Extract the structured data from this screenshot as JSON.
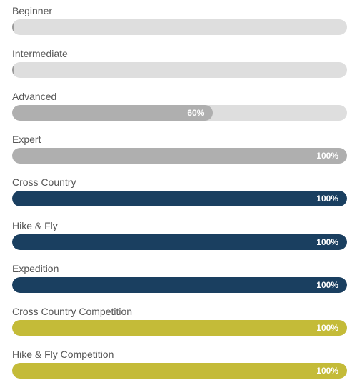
{
  "skills": [
    {
      "label": "Beginner",
      "value": 0.005,
      "percent_text": "",
      "color": "#9a9a9a"
    },
    {
      "label": "Intermediate",
      "value": 0.005,
      "percent_text": "",
      "color": "#9a9a9a"
    },
    {
      "label": "Advanced",
      "value": 0.6,
      "percent_text": "60%",
      "color": "#afafaf"
    },
    {
      "label": "Expert",
      "value": 1.0,
      "percent_text": "100%",
      "color": "#afafaf"
    },
    {
      "label": "Cross Country",
      "value": 1.0,
      "percent_text": "100%",
      "color": "#1a3f60"
    },
    {
      "label": "Hike & Fly",
      "value": 1.0,
      "percent_text": "100%",
      "color": "#1a3f60"
    },
    {
      "label": "Expedition",
      "value": 1.0,
      "percent_text": "100%",
      "color": "#1a3f60"
    },
    {
      "label": "Cross Country Competition",
      "value": 1.0,
      "percent_text": "100%",
      "color": "#c4bb38"
    },
    {
      "label": "Hike & Fly Competition",
      "value": 1.0,
      "percent_text": "100%",
      "color": "#c4bb38"
    }
  ],
  "colors": {
    "track": "#dedede",
    "label": "#555555",
    "percent_text": "#ffffff"
  }
}
